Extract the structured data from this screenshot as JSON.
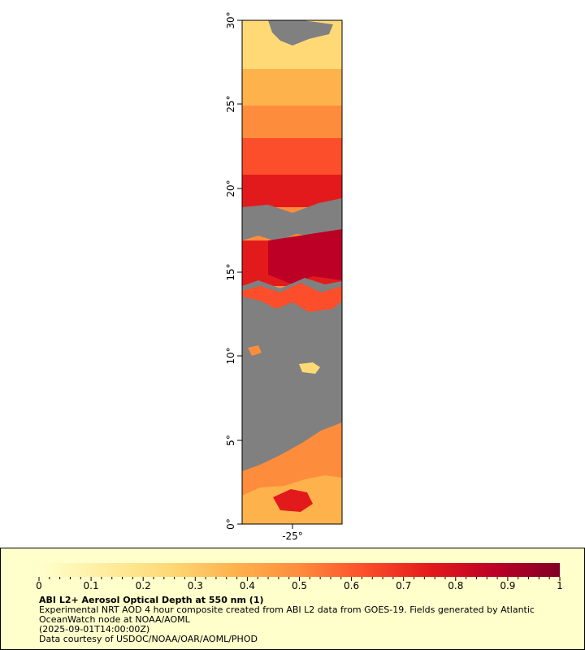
{
  "map": {
    "lat_ticks": [
      "0°",
      "5°",
      "10°",
      "15°",
      "20°",
      "25°",
      "30°"
    ],
    "lon_ticks": [
      "-25°"
    ],
    "no_data_color": "#808080"
  },
  "legend": {
    "ticks": [
      "0",
      "0.1",
      "0.2",
      "0.3",
      "0.4",
      "0.5",
      "0.6",
      "0.7",
      "0.8",
      "0.9",
      "1"
    ],
    "range": [
      0,
      1
    ],
    "colors": [
      "#ffffcc",
      "#ffeda0",
      "#fed976",
      "#feb24c",
      "#fd8d3c",
      "#fc4e2a",
      "#e31a1c",
      "#bd0026",
      "#800026"
    ],
    "background": "#ffffcc"
  },
  "caption": {
    "title": "ABI L2+ Aerosol Optical Depth at 550 nm (1)",
    "line1": "Experimental NRT AOD 4 hour composite created from ABI L2 data from GOES-19. Fields generated by Atlantic",
    "line2": "OceanWatch node at NOAA/AOML",
    "line3": "(2025-09-01T14:00:00Z)",
    "line4": "Data courtesy of USDOC/NOAA/OAR/AOML/PHOD"
  }
}
